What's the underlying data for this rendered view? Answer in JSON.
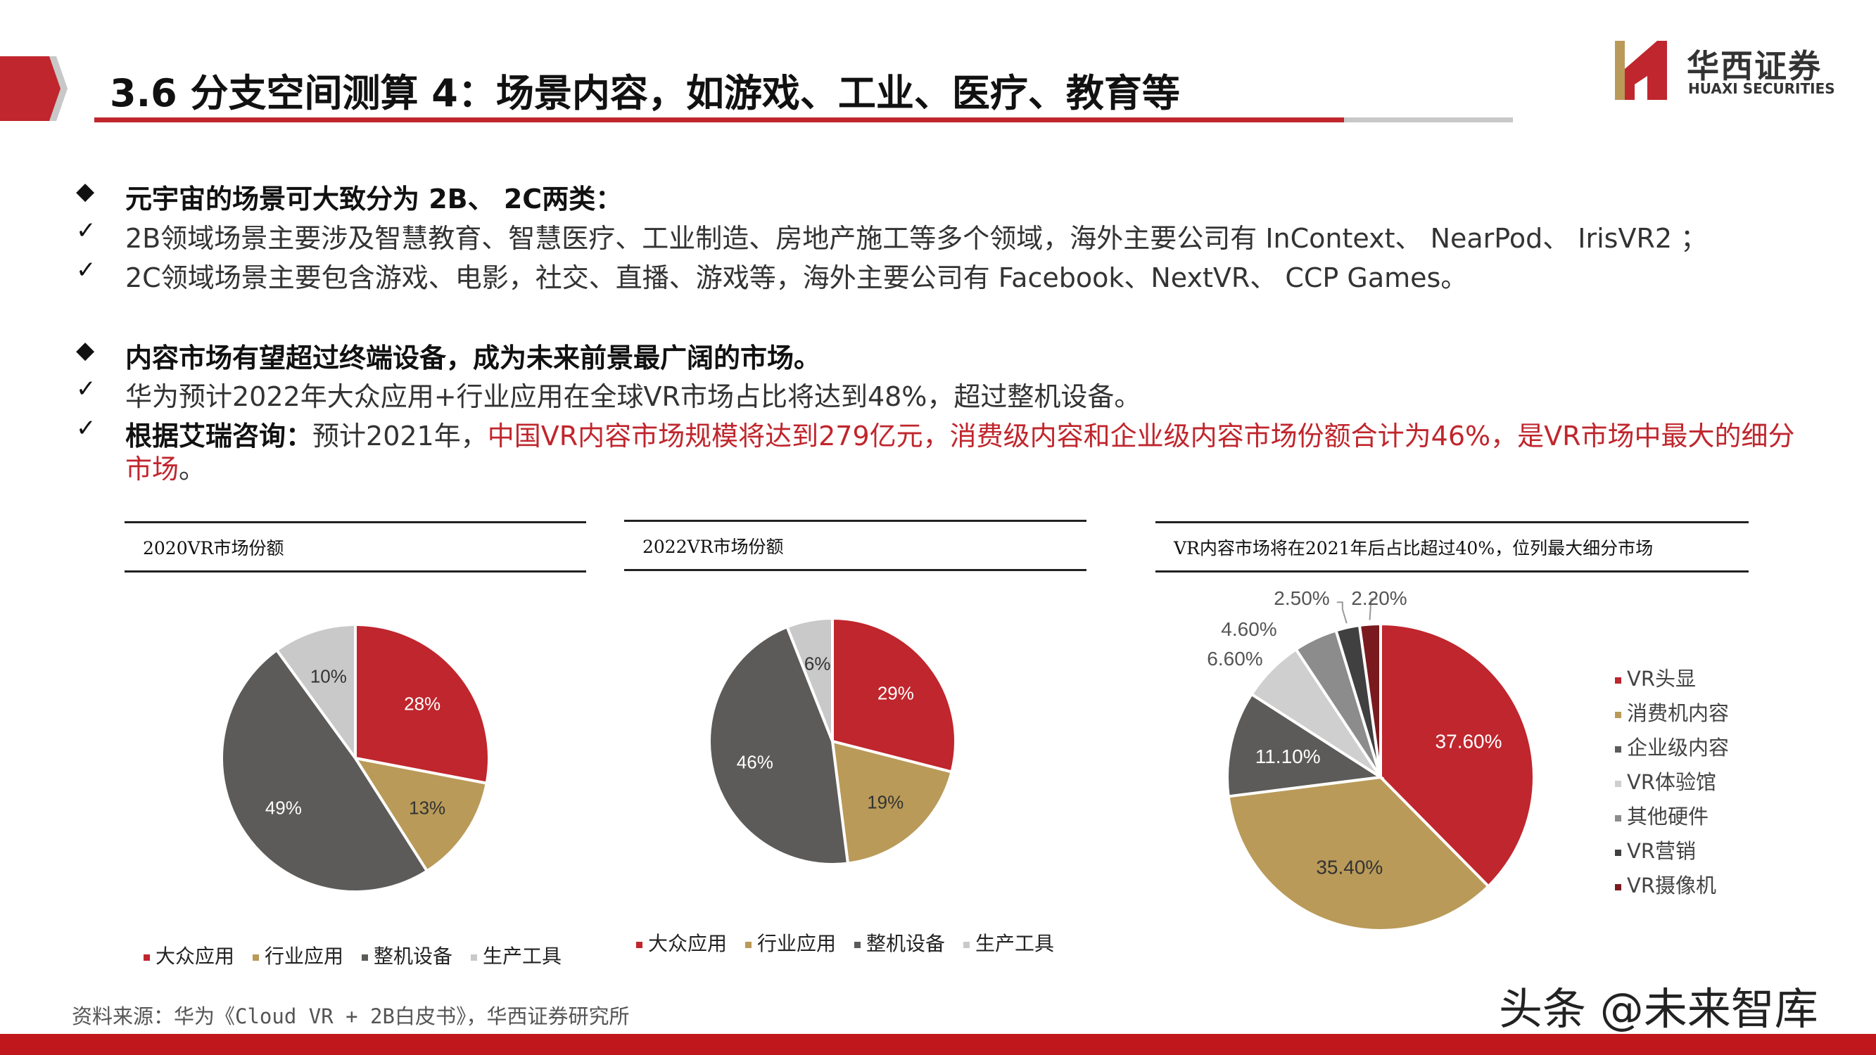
{
  "header": {
    "title": "3.6 分支空间测算 4：场景内容，如游戏、工业、医疗、教育等",
    "logo_cn": "华西证券",
    "logo_en": "HUAXI SECURITIES"
  },
  "body": {
    "b1": "元宇宙的场景可大致分为 2B、 2C两类：",
    "b1_1": "2B领域场景主要涉及智慧教育、智慧医疗、工业制造、房地产施工等多个领域，海外主要公司有 InContext、 NearPod、 IrisVR2 ；",
    "b1_2": "2C领域场景主要包含游戏、电影，社交、直播、游戏等，海外主要公司有 Facebook、NextVR、 CCP Games。",
    "b2": "内容市场有望超过终端设备，成为未来前景最广阔的市场。",
    "b2_1": "华为预计2022年大众应用+行业应用在全球VR市场占比将达到48%，超过整机设备。",
    "b2_2_prefix": "根据艾瑞咨询：",
    "b2_2_mid": "预计2021年，",
    "b2_2_red1": "中国VR内容市场规模将达到279亿元，消费级内容和企业级内容市场份额合计为46%，是VR市场中最大的细分",
    "b2_2_red2": "市场",
    "b2_2_end": "。",
    "diamond": "◆",
    "check": "✓"
  },
  "chart_data": [
    {
      "type": "pie",
      "title": "2020VR市场份额",
      "categories": [
        "大众应用",
        "行业应用",
        "整机设备",
        "生产工具"
      ],
      "values": [
        28,
        13,
        49,
        10
      ],
      "labels": [
        "28%",
        "13%",
        "49%",
        "10%"
      ],
      "colors": [
        "#c0262d",
        "#b99a58",
        "#5d5b59",
        "#c9c9c9"
      ],
      "legend": "bottom"
    },
    {
      "type": "pie",
      "title": "2022VR市场份额",
      "categories": [
        "大众应用",
        "行业应用",
        "整机设备",
        "生产工具"
      ],
      "values": [
        29,
        19,
        46,
        6
      ],
      "labels": [
        "29%",
        "19%",
        "46%",
        "6%"
      ],
      "colors": [
        "#c0262d",
        "#b99a58",
        "#5d5b59",
        "#c9c9c9"
      ],
      "legend": "bottom"
    },
    {
      "type": "pie",
      "title": "VR内容市场将在2021年后占比超过40%，位列最大细分市场",
      "categories": [
        "VR头显",
        "消费机内容",
        "企业级内容",
        "VR体验馆",
        "其他硬件",
        "VR营销",
        "VR摄像机"
      ],
      "values": [
        37.6,
        35.4,
        11.1,
        6.6,
        4.6,
        2.5,
        2.2
      ],
      "labels": [
        "37.60%",
        "35.40%",
        "11.10%",
        "6.60%",
        "4.60%",
        "2.50%",
        "2.20%"
      ],
      "colors": [
        "#c0262d",
        "#b99a58",
        "#5d5b59",
        "#cfcfcf",
        "#8c8c8c",
        "#404040",
        "#7b1a1e"
      ],
      "legend": "right"
    }
  ],
  "footer": {
    "source": "资料来源：华为《Cloud VR + 2B白皮书》，华西证券研究所",
    "watermark": "头条 @未来智库"
  }
}
